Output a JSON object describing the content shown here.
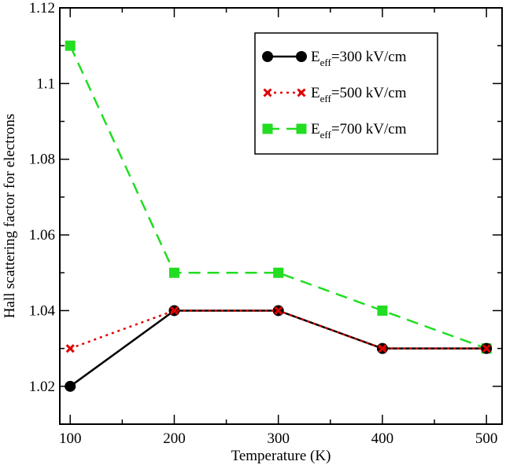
{
  "chart_data": {
    "type": "line",
    "title": "",
    "xlabel": "Temperature (K)",
    "ylabel": "Hall scattering factor for electrons",
    "x": [
      100,
      200,
      300,
      400,
      500
    ],
    "xlim": [
      90,
      515
    ],
    "ylim": [
      1.01,
      1.12
    ],
    "xticks": [
      100,
      200,
      300,
      400,
      500
    ],
    "yticks": [
      1.02,
      1.04,
      1.06,
      1.08,
      1.1,
      1.12
    ],
    "ytick_labels": [
      "1.02",
      "1.04",
      "1.06",
      "1.08",
      "1.1",
      "1.12"
    ],
    "grid": false,
    "legend_position": "top-right",
    "series": [
      {
        "id": "e300",
        "legend_main": "E",
        "legend_sub": "eff",
        "legend_rest": "=300 kV/cm",
        "color": "#000000",
        "line": "solid",
        "marker": "circle",
        "values": [
          1.02,
          1.04,
          1.04,
          1.03,
          1.03
        ]
      },
      {
        "id": "e500",
        "legend_main": "E",
        "legend_sub": "eff",
        "legend_rest": "=500 kV/cm",
        "color": "#e00000",
        "line": "dotted",
        "marker": "x",
        "values": [
          1.03,
          1.04,
          1.04,
          1.03,
          1.03
        ]
      },
      {
        "id": "e700",
        "legend_main": "E",
        "legend_sub": "eff",
        "legend_rest": "=700 kV/cm",
        "color": "#22dd22",
        "line": "dashed",
        "marker": "square",
        "values": [
          1.11,
          1.05,
          1.05,
          1.04,
          1.03
        ]
      }
    ]
  }
}
